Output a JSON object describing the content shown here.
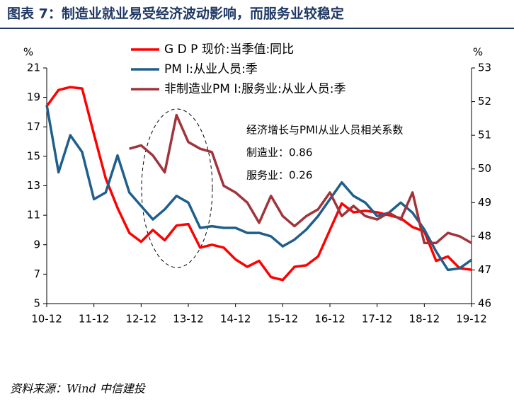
{
  "chart_data": {
    "type": "line",
    "title": "图表 7：制造业就业易受经济波动影响，而服务业较稳定",
    "source": "资料来源：Wind   中信建投",
    "ylabel": "%",
    "y2label": "%",
    "annotations": [
      "经济增长与PMI从业人员相关系数",
      "制造业：0.86",
      "服务业：0.26"
    ],
    "categories": [
      "10-12",
      null,
      null,
      null,
      "11-12",
      null,
      null,
      null,
      "12-12",
      null,
      null,
      null,
      "13-12",
      null,
      null,
      null,
      "14-12",
      null,
      null,
      null,
      "15-12",
      null,
      null,
      null,
      "16-12",
      null,
      null,
      null,
      "17-12",
      null,
      null,
      null,
      "18-12",
      null,
      null,
      null,
      "19-12"
    ],
    "ylim": [
      5,
      21
    ],
    "yticks": [
      5,
      7,
      9,
      11,
      13,
      15,
      17,
      19,
      21
    ],
    "y2lim": [
      46,
      53
    ],
    "y2ticks": [
      46,
      47,
      48,
      49,
      50,
      51,
      52,
      53
    ],
    "series": [
      {
        "name": "G D P 现价:当季值:同比",
        "color": "#ff0000",
        "values": [
          18.4,
          19.5,
          19.7,
          19.6,
          16.5,
          13.5,
          11.5,
          9.8,
          9.2,
          10.0,
          9.3,
          10.3,
          10.4,
          8.8,
          9.0,
          8.8,
          8.0,
          7.5,
          7.9,
          6.8,
          6.6,
          7.5,
          7.6,
          8.2,
          10.0,
          11.8,
          11.2,
          11.3,
          11.2,
          11.0,
          10.8,
          10.2,
          9.9,
          7.9,
          8.2,
          7.4,
          7.3
        ]
      },
      {
        "name": "PM I:从业人员:季",
        "color": "#1f5f8b",
        "axis": "y2",
        "values": [
          51.9,
          49.9,
          51.0,
          50.5,
          49.1,
          49.3,
          50.4,
          49.3,
          48.9,
          48.5,
          48.8,
          49.2,
          49.0,
          48.25,
          48.3,
          48.25,
          48.25,
          48.1,
          48.1,
          48.0,
          47.7,
          47.9,
          48.2,
          48.6,
          49.1,
          49.6,
          49.2,
          49.0,
          48.6,
          48.7,
          49.0,
          48.7,
          48.2,
          47.55,
          47.0,
          47.05,
          47.3
        ]
      },
      {
        "name": "非制造业PM I:服务业:从业人员:季",
        "color": "#a0343a",
        "axis": "y2",
        "values": [
          null,
          null,
          null,
          null,
          null,
          null,
          null,
          50.6,
          50.7,
          50.4,
          49.9,
          51.6,
          50.8,
          50.6,
          50.5,
          49.5,
          49.3,
          49.0,
          48.4,
          49.2,
          48.6,
          48.3,
          48.6,
          48.8,
          49.3,
          48.6,
          48.9,
          48.6,
          48.5,
          48.7,
          48.5,
          49.3,
          47.8,
          47.8,
          48.1,
          48.0,
          47.8
        ]
      }
    ]
  }
}
